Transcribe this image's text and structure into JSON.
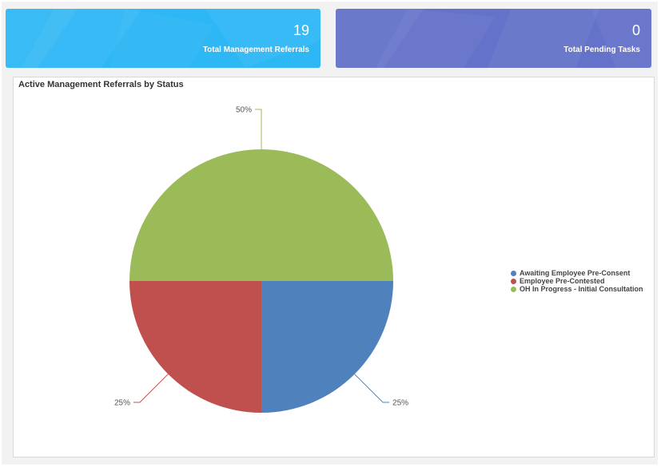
{
  "tiles": [
    {
      "count": "19",
      "label": "Total Management Referrals",
      "color": "#2db7f5"
    },
    {
      "count": "0",
      "label": "Total Pending Tasks",
      "color": "#6472c9"
    }
  ],
  "chart_data": {
    "type": "pie",
    "title": "Active Management Referrals by Status",
    "legend_position": "right",
    "slices": [
      {
        "label": "Awaiting Employee Pre-Consent",
        "value": 25,
        "display": "25%",
        "color": "#4f81bd"
      },
      {
        "label": "Employee Pre-Contested",
        "value": 25,
        "display": "25%",
        "color": "#c0504d"
      },
      {
        "label": "OH In Progress - Initial Consultation",
        "value": 50,
        "display": "50%",
        "color": "#9bbb59"
      }
    ]
  }
}
